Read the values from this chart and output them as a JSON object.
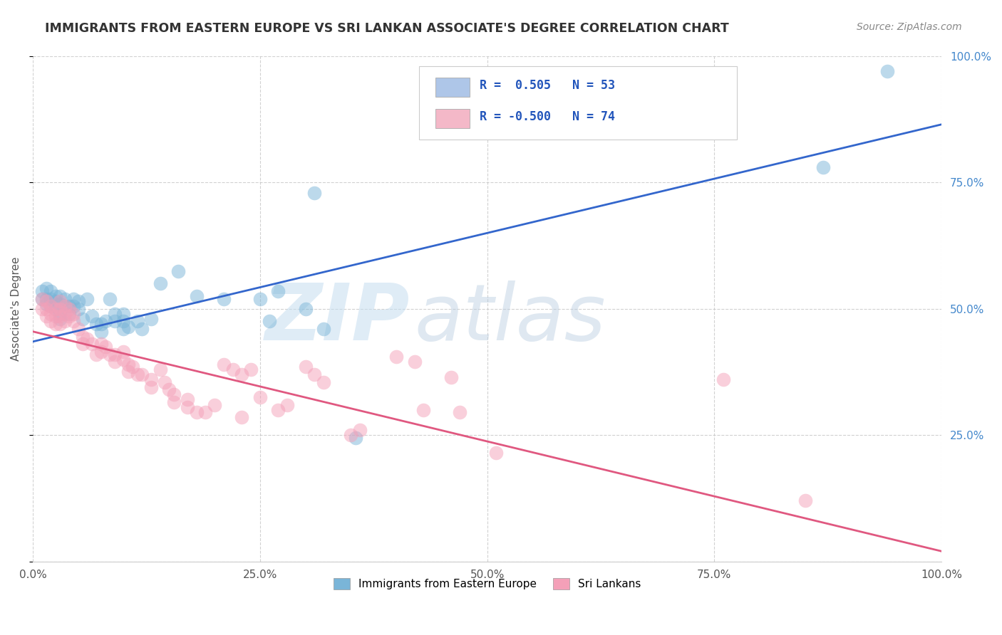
{
  "title": "IMMIGRANTS FROM EASTERN EUROPE VS SRI LANKAN ASSOCIATE'S DEGREE CORRELATION CHART",
  "source": "Source: ZipAtlas.com",
  "ylabel": "Associate's Degree",
  "watermark_zip": "ZIP",
  "watermark_atlas": "atlas",
  "legend_line1": "R =  0.505   N = 53",
  "legend_line2": "R = -0.500   N = 74",
  "blue_line": {
    "x0": 0.0,
    "y0": 43.5,
    "x1": 100.0,
    "y1": 86.5
  },
  "pink_line": {
    "x0": 0.0,
    "y0": 45.5,
    "x1": 100.0,
    "y1": 2.0
  },
  "blue_dots": [
    [
      1.0,
      53.5
    ],
    [
      1.0,
      52.0
    ],
    [
      1.5,
      54.0
    ],
    [
      1.5,
      52.0
    ],
    [
      1.5,
      51.0
    ],
    [
      2.0,
      53.5
    ],
    [
      2.0,
      52.0
    ],
    [
      2.0,
      50.5
    ],
    [
      2.5,
      52.5
    ],
    [
      2.5,
      51.5
    ],
    [
      2.5,
      50.0
    ],
    [
      3.0,
      52.5
    ],
    [
      3.0,
      51.0
    ],
    [
      3.0,
      49.0
    ],
    [
      3.0,
      48.0
    ],
    [
      3.5,
      52.0
    ],
    [
      3.5,
      50.5
    ],
    [
      4.0,
      50.5
    ],
    [
      4.0,
      49.0
    ],
    [
      4.5,
      52.0
    ],
    [
      4.5,
      50.5
    ],
    [
      5.0,
      51.5
    ],
    [
      5.0,
      50.0
    ],
    [
      5.5,
      48.0
    ],
    [
      6.0,
      52.0
    ],
    [
      6.5,
      48.5
    ],
    [
      7.0,
      47.0
    ],
    [
      7.5,
      47.0
    ],
    [
      7.5,
      45.5
    ],
    [
      8.0,
      47.5
    ],
    [
      8.5,
      52.0
    ],
    [
      9.0,
      49.0
    ],
    [
      9.0,
      47.5
    ],
    [
      10.0,
      49.0
    ],
    [
      10.0,
      47.5
    ],
    [
      10.0,
      46.0
    ],
    [
      10.5,
      46.5
    ],
    [
      11.5,
      47.5
    ],
    [
      12.0,
      46.0
    ],
    [
      13.0,
      48.0
    ],
    [
      14.0,
      55.0
    ],
    [
      16.0,
      57.5
    ],
    [
      18.0,
      52.5
    ],
    [
      21.0,
      52.0
    ],
    [
      25.0,
      52.0
    ],
    [
      26.0,
      47.5
    ],
    [
      27.0,
      53.5
    ],
    [
      30.0,
      50.0
    ],
    [
      32.0,
      46.0
    ],
    [
      35.5,
      24.5
    ],
    [
      87.0,
      78.0
    ],
    [
      94.0,
      97.0
    ],
    [
      31.0,
      73.0
    ]
  ],
  "pink_dots": [
    [
      1.0,
      52.0
    ],
    [
      1.0,
      50.0
    ],
    [
      1.5,
      51.5
    ],
    [
      1.5,
      50.0
    ],
    [
      1.5,
      48.5
    ],
    [
      2.0,
      50.5
    ],
    [
      2.0,
      49.0
    ],
    [
      2.0,
      47.5
    ],
    [
      2.5,
      50.0
    ],
    [
      2.5,
      48.5
    ],
    [
      2.5,
      47.0
    ],
    [
      3.0,
      51.5
    ],
    [
      3.0,
      50.0
    ],
    [
      3.0,
      48.5
    ],
    [
      3.0,
      47.0
    ],
    [
      3.5,
      50.5
    ],
    [
      3.5,
      49.0
    ],
    [
      3.5,
      47.5
    ],
    [
      4.0,
      50.0
    ],
    [
      4.0,
      48.5
    ],
    [
      4.5,
      49.0
    ],
    [
      4.5,
      47.5
    ],
    [
      5.0,
      46.0
    ],
    [
      5.5,
      44.5
    ],
    [
      5.5,
      43.0
    ],
    [
      6.0,
      44.0
    ],
    [
      6.5,
      43.0
    ],
    [
      7.0,
      41.0
    ],
    [
      7.5,
      43.0
    ],
    [
      7.5,
      41.5
    ],
    [
      8.0,
      42.5
    ],
    [
      8.5,
      41.0
    ],
    [
      9.0,
      41.0
    ],
    [
      9.0,
      39.5
    ],
    [
      10.0,
      41.5
    ],
    [
      10.0,
      40.0
    ],
    [
      10.5,
      39.0
    ],
    [
      10.5,
      37.5
    ],
    [
      11.0,
      38.5
    ],
    [
      11.5,
      37.0
    ],
    [
      12.0,
      37.0
    ],
    [
      13.0,
      36.0
    ],
    [
      13.0,
      34.5
    ],
    [
      14.0,
      38.0
    ],
    [
      14.5,
      35.5
    ],
    [
      15.0,
      34.0
    ],
    [
      15.5,
      33.0
    ],
    [
      15.5,
      31.5
    ],
    [
      17.0,
      32.0
    ],
    [
      17.0,
      30.5
    ],
    [
      18.0,
      29.5
    ],
    [
      19.0,
      29.5
    ],
    [
      20.0,
      31.0
    ],
    [
      21.0,
      39.0
    ],
    [
      22.0,
      38.0
    ],
    [
      23.0,
      37.0
    ],
    [
      24.0,
      38.0
    ],
    [
      25.0,
      32.5
    ],
    [
      27.0,
      30.0
    ],
    [
      28.0,
      31.0
    ],
    [
      30.0,
      38.5
    ],
    [
      31.0,
      37.0
    ],
    [
      32.0,
      35.5
    ],
    [
      35.0,
      25.0
    ],
    [
      36.0,
      26.0
    ],
    [
      40.0,
      40.5
    ],
    [
      42.0,
      39.5
    ],
    [
      43.0,
      30.0
    ],
    [
      46.0,
      36.5
    ],
    [
      47.0,
      29.5
    ],
    [
      51.0,
      21.5
    ],
    [
      76.0,
      36.0
    ],
    [
      85.0,
      12.0
    ],
    [
      23.0,
      28.5
    ]
  ],
  "xlim": [
    0,
    100
  ],
  "ylim": [
    0,
    100
  ],
  "xtick_positions": [
    0,
    25,
    50,
    75,
    100
  ],
  "xtick_labels": [
    "0.0%",
    "25.0%",
    "50.0%",
    "75.0%",
    "100.0%"
  ],
  "ytick_positions": [
    25,
    50,
    75,
    100
  ],
  "ytick_labels_right": [
    "25.0%",
    "50.0%",
    "75.0%",
    "100.0%"
  ],
  "grid_color": "#cccccc",
  "blue_dot_color": "#7ab5d8",
  "pink_dot_color": "#f4a0b8",
  "blue_line_color": "#3366cc",
  "pink_line_color": "#e05880",
  "legend_box_color1": "#aec6e8",
  "legend_box_color2": "#f4b8c8",
  "title_color": "#333333",
  "source_color": "#888888",
  "right_label_color": "#4488cc",
  "ylabel_color": "#555555",
  "dot_size": 200,
  "dot_alpha": 0.5
}
